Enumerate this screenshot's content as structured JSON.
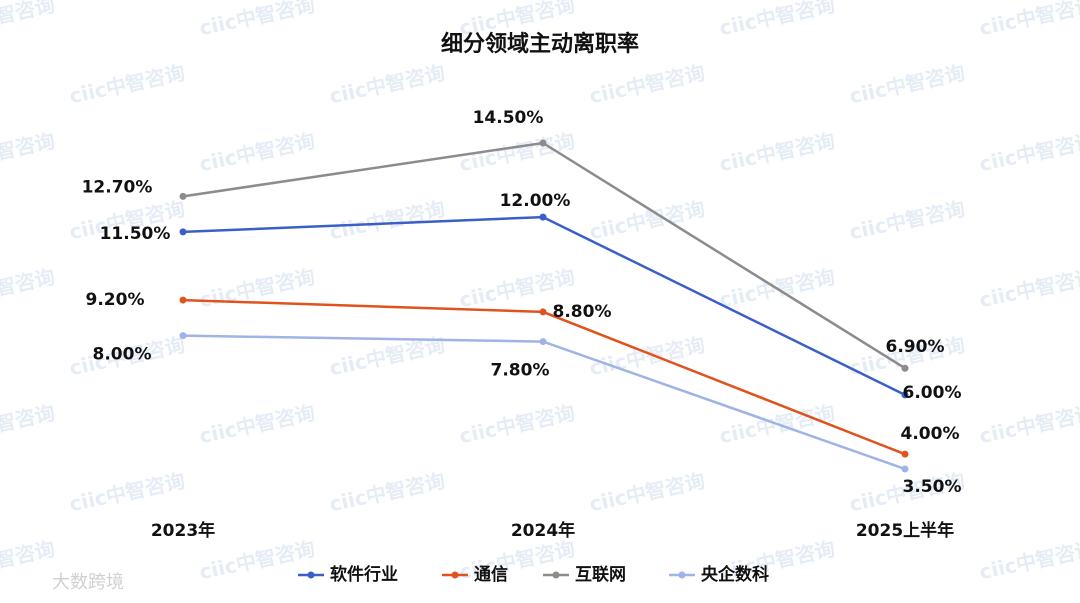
{
  "chart_data": {
    "type": "line",
    "title": "细分领域主动离职率",
    "categories": [
      "2023年",
      "2024年",
      "2025上半年"
    ],
    "series": [
      {
        "name": "软件行业",
        "color": "#3b5fc8",
        "values": [
          11.5,
          12.0,
          6.0
        ],
        "value_labels": [
          "11.50%",
          "12.00%",
          "6.00%"
        ]
      },
      {
        "name": "通信",
        "color": "#e0531f",
        "values": [
          9.2,
          8.8,
          4.0
        ],
        "value_labels": [
          "9.20%",
          "8.80%",
          "4.00%"
        ]
      },
      {
        "name": "互联网",
        "color": "#8c8c8c",
        "values": [
          12.7,
          14.5,
          6.9
        ],
        "value_labels": [
          "12.70%",
          "14.50%",
          "6.90%"
        ]
      },
      {
        "name": "央企数科",
        "color": "#9fb3e6",
        "values": [
          8.0,
          7.8,
          3.5
        ],
        "value_labels": [
          "8.00%",
          "7.80%",
          "3.50%"
        ]
      }
    ],
    "legend": "bottom",
    "background_watermark": "ciic中智咨询",
    "corner_watermark": "大数跨境"
  }
}
